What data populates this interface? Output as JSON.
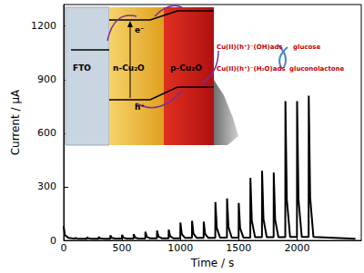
{
  "chart_data": {
    "type": "line",
    "x_label": "Time / s",
    "y_label": "Current / µA",
    "color": "#000000",
    "grid": false,
    "xlim": [
      0,
      2550
    ],
    "xticks": [
      0,
      500,
      1000,
      1500,
      2000
    ],
    "ylim": [
      0,
      1320
    ],
    "yticks": [
      0,
      300,
      600,
      900,
      1200
    ],
    "annotations": [
      "FTO",
      "n-Cu₂O",
      "p-Cu₂O",
      "e⁻",
      "h⁺",
      "Cu(II)(h⁺)⁻(OH)ads",
      "Cu(II)(h⁺)⁻(H₂O)ads",
      "glucose",
      "gluconolactone"
    ],
    "x": [
      0,
      10,
      40,
      99,
      100,
      112,
      140,
      199,
      200,
      212,
      240,
      299,
      300,
      312,
      340,
      399,
      400,
      412,
      440,
      499,
      500,
      512,
      540,
      599,
      600,
      612,
      640,
      699,
      700,
      712,
      740,
      799,
      800,
      812,
      840,
      899,
      900,
      912,
      940,
      999,
      1000,
      1012,
      1040,
      1099,
      1100,
      1112,
      1140,
      1199,
      1200,
      1212,
      1240,
      1299,
      1300,
      1312,
      1340,
      1399,
      1400,
      1412,
      1440,
      1499,
      1500,
      1512,
      1540,
      1599,
      1600,
      1612,
      1640,
      1699,
      1700,
      1712,
      1740,
      1799,
      1800,
      1812,
      1840,
      1899,
      1900,
      1912,
      1940,
      1999,
      2000,
      2012,
      2040,
      2099,
      2100,
      2112,
      2140,
      2500
    ],
    "values": [
      80,
      30,
      15,
      10,
      15,
      11,
      10,
      10,
      18,
      12,
      10,
      10,
      20,
      12,
      10,
      10,
      28,
      14,
      11,
      11,
      32,
      15,
      11,
      11,
      35,
      16,
      11,
      11,
      48,
      20,
      12,
      12,
      55,
      22,
      12,
      12,
      60,
      24,
      12,
      12,
      100,
      35,
      14,
      14,
      110,
      38,
      14,
      14,
      105,
      36,
      14,
      14,
      215,
      70,
      16,
      16,
      235,
      75,
      16,
      16,
      210,
      68,
      16,
      16,
      350,
      110,
      18,
      18,
      390,
      120,
      18,
      18,
      380,
      115,
      18,
      18,
      780,
      230,
      20,
      20,
      780,
      230,
      20,
      20,
      810,
      240,
      20,
      10
    ]
  }
}
